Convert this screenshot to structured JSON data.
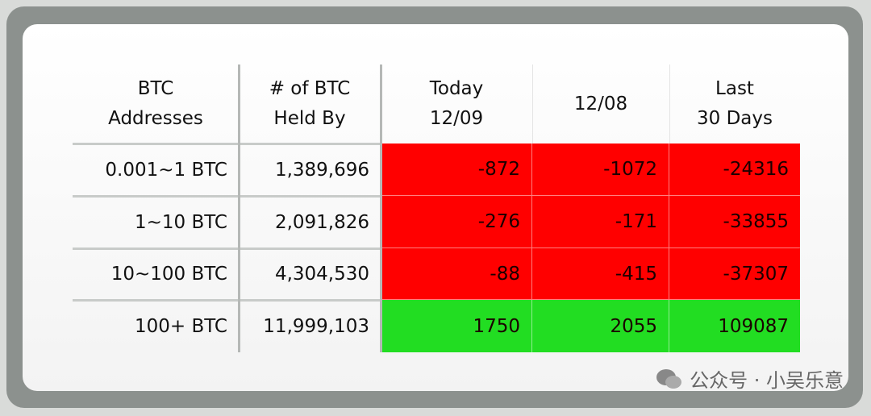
{
  "table": {
    "header": [
      [
        "BTC",
        "Addresses"
      ],
      [
        "# of BTC",
        "Held By"
      ],
      [
        "Today",
        "12/09"
      ],
      [
        "12/08"
      ],
      [
        "Last",
        "30 Days"
      ]
    ],
    "rows": [
      [
        "0.001~1 BTC",
        "1,389,696",
        "-872",
        "-1072",
        "-24316"
      ],
      [
        "1~10 BTC",
        "2,091,826",
        "-276",
        "-171",
        "-33855"
      ],
      [
        "10~100 BTC",
        "4,304,530",
        "-88",
        "-415",
        "-37307"
      ],
      [
        "100+ BTC",
        "11,999,103",
        "1750",
        "2055",
        "109087"
      ]
    ]
  },
  "watermark": "公众号 · 小吴乐意"
}
